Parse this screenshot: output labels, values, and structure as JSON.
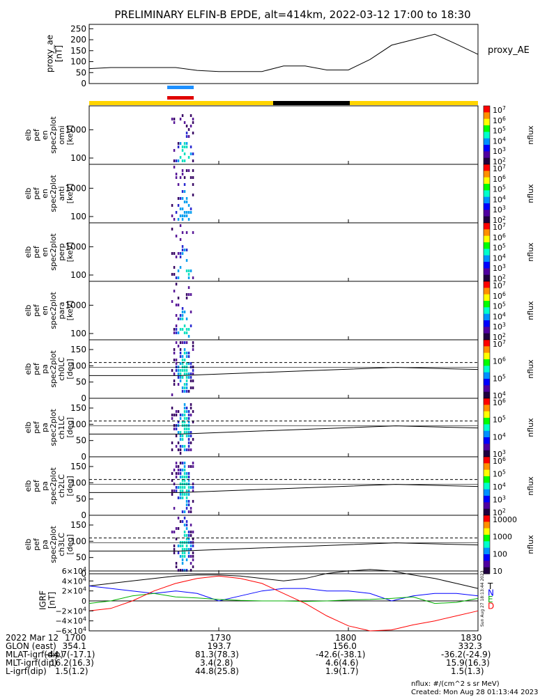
{
  "title": "PRELIMINARY ELFIN-B EPDE, alt=414km, 2022-03-12 17:00 to 18:30",
  "proxy_panel": {
    "ylabel": "proxy_ae\n[nT]",
    "yticks": [
      "250",
      "200",
      "150",
      "100",
      "50",
      "0"
    ],
    "legend": "proxy_AE"
  },
  "panels": [
    {
      "id": "omni",
      "ylabel": "elb\npef\nen\nspec2plot\nomni\n[keV]",
      "yticks": [
        "1000",
        "100"
      ],
      "cb_label": "nflux",
      "cb_ticks": [
        "10^7",
        "10^6",
        "10^5",
        "10^4",
        "10^3",
        "10^2"
      ]
    },
    {
      "id": "anti",
      "ylabel": "elb\npef\nen\nspec2plot\nanti\n[keV]",
      "yticks": [
        "1000",
        "100"
      ],
      "cb_label": "nflux",
      "cb_ticks": [
        "10^7",
        "10^6",
        "10^5",
        "10^4",
        "10^3",
        "10^2"
      ]
    },
    {
      "id": "perp",
      "ylabel": "elb\npef\nen\nspec2plot\nperp\n[keV]",
      "yticks": [
        "1000",
        "100"
      ],
      "cb_label": "nflux",
      "cb_ticks": [
        "10^7",
        "10^6",
        "10^5",
        "10^4",
        "10^3",
        "10^2"
      ]
    },
    {
      "id": "para",
      "ylabel": "elb\npef\nen\nspec2plot\npara\n[keV]",
      "yticks": [
        "1000",
        "100"
      ],
      "cb_label": "nflux",
      "cb_ticks": [
        "10^7",
        "10^6",
        "10^5",
        "10^4",
        "10^3",
        "10^2"
      ]
    },
    {
      "id": "ch0LC",
      "ylabel": "elb\npef\npa\nspec2plot\nch0LC\n[deg]",
      "yticks": [
        "150",
        "100",
        "50",
        "0"
      ],
      "cb_label": "nflux",
      "cb_ticks": [
        "10^7",
        "10^6",
        "10^5",
        "10^4"
      ]
    },
    {
      "id": "ch1LC",
      "ylabel": "elb\npef\npa\nspec2plot\nch1LC\n[deg]",
      "yticks": [
        "150",
        "100",
        "50",
        "0"
      ],
      "cb_label": "nflux",
      "cb_ticks": [
        "10^6",
        "10^5",
        "10^4",
        "10^3"
      ]
    },
    {
      "id": "ch2LC",
      "ylabel": "elb\npef\npa\nspec2plot\nch2LC\n[deg]",
      "yticks": [
        "150",
        "100",
        "50",
        "0"
      ],
      "cb_label": "nflux",
      "cb_ticks": [
        "10^6",
        "10^5",
        "10^4",
        "10^3",
        "10^2"
      ]
    },
    {
      "id": "ch3LC",
      "ylabel": "elb\npef\npa\nspec2plot\nch3LC\n[deg]",
      "yticks": [
        "150",
        "100",
        "50",
        "0"
      ],
      "cb_label": "nflux",
      "cb_ticks": [
        "10000",
        "1000",
        "100",
        "10"
      ]
    }
  ],
  "igrf_panel": {
    "ylabel": "IGRF\n[nT]",
    "yticks": [
      "6×10^4",
      "4×10^4",
      "2×10^4",
      "0",
      "−2×10^4",
      "−4×10^4",
      "−6×10^4"
    ],
    "legend": [
      "T",
      "N",
      "E",
      "D"
    ],
    "legend_colors": [
      "#000000",
      "#0000ff",
      "#00b000",
      "#ff0000"
    ],
    "side_note": "Sun Aug 27 18:13:44 2023"
  },
  "x_axis": {
    "tick_labels": [
      "1700",
      "1730",
      "1800",
      "1830"
    ]
  },
  "footer_rows": [
    {
      "label": "2022 Mar 12",
      "values": [
        "1700",
        "1730",
        "1800",
        "1830"
      ]
    },
    {
      "label": "GLON (east)",
      "values": [
        "354.1",
        "193.7",
        "156.0",
        "332.3"
      ]
    },
    {
      "label": "MLAT-igrf(dip)",
      "values": [
        "-44.7(-17.1)",
        "81.3(78.3)",
        "-42.6(-38.1)",
        "-36.2(-24.9)"
      ]
    },
    {
      "label": "MLT-igrf(dip)",
      "values": [
        "16.2(16.3)",
        "3.4(2.8)",
        "4.6(4.6)",
        "15.9(16.3)"
      ]
    },
    {
      "label": "L-igrf(dip)",
      "values": [
        "1.5(1.2)",
        "44.8(25.8)",
        "1.9(1.7)",
        "1.5(1.3)"
      ]
    }
  ],
  "footnote_units": "nflux: #/(cm^2 s sr MeV)",
  "footnote_created": "Created: Mon Aug 28 01:13:44 2023",
  "colors": {
    "status_yellow": "#ffd400",
    "status_black": "#000000",
    "marker_blue": "#1e90ff",
    "marker_red": "#e00000"
  },
  "chart_data": [
    {
      "type": "line",
      "title": "PRELIMINARY ELFIN-B EPDE, alt=414km, 2022-03-12 17:00 to 18:30",
      "ylabel": "proxy_ae [nT]",
      "ylim": [
        0,
        270
      ],
      "x": [
        "17:00",
        "17:05",
        "17:10",
        "17:15",
        "17:20",
        "17:25",
        "17:30",
        "17:35",
        "17:40",
        "17:45",
        "17:50",
        "17:55",
        "18:00",
        "18:05",
        "18:10",
        "18:15",
        "18:20",
        "18:25",
        "18:30"
      ],
      "series": [
        {
          "name": "proxy_AE",
          "values": [
            68,
            73,
            73,
            73,
            73,
            60,
            55,
            55,
            55,
            80,
            80,
            62,
            62,
            110,
            175,
            200,
            225,
            180,
            133
          ]
        }
      ]
    },
    {
      "type": "heatmap",
      "panels": [
        "omni",
        "anti",
        "perp",
        "para",
        "ch0LC",
        "ch1LC",
        "ch2LC",
        "ch3LC"
      ],
      "energy_ylim_keV": [
        60,
        7000
      ],
      "pitch_ylim_deg": [
        0,
        180
      ],
      "activity_window": [
        "17:19",
        "17:24"
      ],
      "pitch_lines_deg": {
        "dashed": 110,
        "solid_start": 70,
        "solid_end": 95
      },
      "zlabel": "nflux"
    },
    {
      "type": "line",
      "ylabel": "IGRF [nT]",
      "ylim": [
        -60000,
        60000
      ],
      "x": [
        "17:00",
        "17:05",
        "17:10",
        "17:15",
        "17:20",
        "17:25",
        "17:30",
        "17:35",
        "17:40",
        "17:45",
        "17:50",
        "17:55",
        "18:00",
        "18:05",
        "18:10",
        "18:15",
        "18:20",
        "18:25",
        "18:30"
      ],
      "series": [
        {
          "name": "T",
          "values": [
            30000,
            35000,
            40000,
            45000,
            50000,
            52000,
            52000,
            50000,
            45000,
            40000,
            45000,
            55000,
            60000,
            63000,
            60000,
            52000,
            45000,
            35000,
            25000
          ]
        },
        {
          "name": "N",
          "values": [
            30000,
            25000,
            20000,
            15000,
            20000,
            15000,
            0,
            10000,
            20000,
            25000,
            25000,
            20000,
            20000,
            15000,
            0,
            10000,
            15000,
            15000,
            10000
          ]
        },
        {
          "name": "E",
          "values": [
            -5000,
            0,
            10000,
            15000,
            8000,
            6000,
            3000,
            1000,
            0,
            0,
            -1000,
            0,
            2000,
            3000,
            5000,
            8000,
            -5000,
            -3000,
            5000
          ]
        },
        {
          "name": "D",
          "values": [
            -20000,
            -15000,
            0,
            20000,
            35000,
            45000,
            50000,
            45000,
            35000,
            15000,
            -5000,
            -30000,
            -50000,
            -60000,
            -58000,
            -48000,
            -40000,
            -30000,
            -20000
          ]
        }
      ]
    }
  ]
}
